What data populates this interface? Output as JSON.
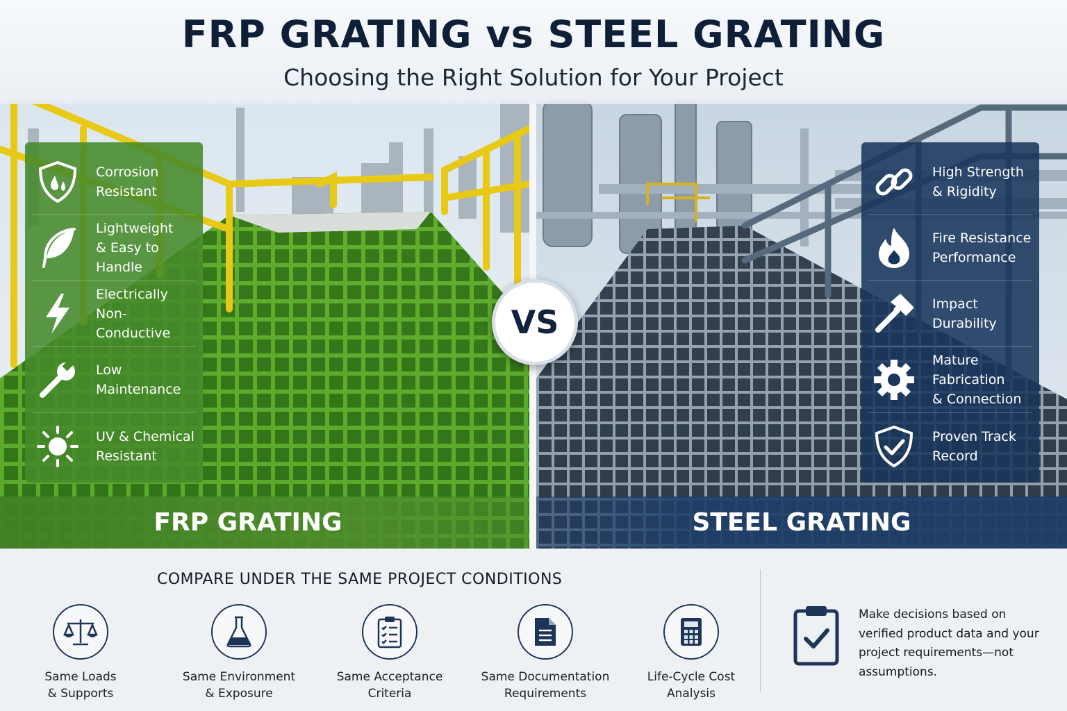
{
  "header": {
    "title": "FRP GRATING vs STEEL GRATING",
    "subtitle": "Choosing the Right Solution for Your Project"
  },
  "vs_badge": "VS",
  "frp": {
    "banner": "FRP GRATING",
    "color": "#468a2a",
    "features": [
      {
        "icon": "shield-drop-icon",
        "label": "Corrosion\nResistant"
      },
      {
        "icon": "feather-icon",
        "label": "Lightweight\n& Easy to Handle"
      },
      {
        "icon": "lightning-icon",
        "label": "Electrically\nNon-Conductive"
      },
      {
        "icon": "wrench-icon",
        "label": "Low Maintenance"
      },
      {
        "icon": "sun-icon",
        "label": "UV & Chemical\nResistant"
      }
    ]
  },
  "steel": {
    "banner": "STEEL GRATING",
    "color": "#19365c",
    "features": [
      {
        "icon": "chain-link-icon",
        "label": "High Strength\n& Rigidity"
      },
      {
        "icon": "flame-icon",
        "label": "Fire Resistance\nPerformance"
      },
      {
        "icon": "hammer-icon",
        "label": "Impact\nDurability"
      },
      {
        "icon": "gear-icon",
        "label": "Mature Fabrication\n& Connection"
      },
      {
        "icon": "shield-check-icon",
        "label": "Proven Track\nRecord"
      }
    ]
  },
  "bottom": {
    "title": "COMPARE UNDER THE SAME PROJECT CONDITIONS",
    "conditions": [
      {
        "icon": "scales-icon",
        "label": "Same Loads\n& Supports"
      },
      {
        "icon": "flask-icon",
        "label": "Same Environment\n& Exposure"
      },
      {
        "icon": "checklist-icon",
        "label": "Same Acceptance\nCriteria"
      },
      {
        "icon": "document-icon",
        "label": "Same Documentation\nRequirements"
      },
      {
        "icon": "calculator-icon",
        "label": "Life-Cycle Cost\nAnalysis"
      }
    ],
    "note_icon": "clipboard-check-icon",
    "note": "Make decisions based on verified product data and your project requirements—not assumptions."
  }
}
